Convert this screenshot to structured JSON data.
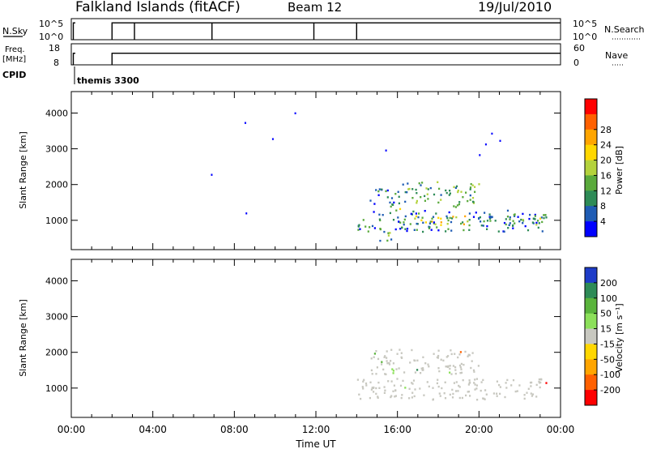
{
  "header": {
    "title": "Falkland Islands (fitACF)",
    "beam": "Beam 12",
    "date": "19/Jul/2010"
  },
  "status_panels": {
    "nsky": {
      "label": "N.Sky",
      "right_label": "N.Search",
      "left_ticks": [
        "10^5",
        "10^0"
      ],
      "right_ticks": [
        "10^5",
        "10^0"
      ]
    },
    "freq": {
      "label_line1": "Freq.",
      "label_line2": "[MHz]",
      "right_label": "Nave",
      "left_ticks": [
        "18",
        "8"
      ],
      "right_ticks": [
        "60",
        "0"
      ]
    },
    "cpid": {
      "label": "CPID",
      "mode": "themis 3300"
    }
  },
  "chart_data": [
    {
      "type": "heatmap",
      "title": "",
      "xlabel": "",
      "ylabel": "Slant Range [km]",
      "xlim": [
        0,
        24
      ],
      "ylim": [
        180,
        4600
      ],
      "yticks": [
        1000,
        2000,
        3000,
        4000
      ],
      "colorbar": {
        "label": "Power [dB]",
        "ticks": [
          "4",
          "8",
          "12",
          "16",
          "20",
          "24",
          "28"
        ],
        "colors": [
          "#0000ff",
          "#1f5cb4",
          "#2e8b57",
          "#5aaa3c",
          "#b4d23c",
          "#ffd700",
          "#ffa500",
          "#ff6000",
          "#ff0000"
        ]
      },
      "points": [
        {
          "t": 6.85,
          "r": 2300,
          "v": 4
        },
        {
          "t": 8.5,
          "r": 3750,
          "v": 4
        },
        {
          "t": 8.55,
          "r": 1220,
          "v": 4
        },
        {
          "t": 9.85,
          "r": 3300,
          "v": 4
        },
        {
          "t": 10.95,
          "r": 4020,
          "v": 4
        },
        {
          "t": 15.4,
          "r": 2980,
          "v": 4
        },
        {
          "t": 20.6,
          "r": 3450,
          "v": 4
        },
        {
          "t": 20.3,
          "r": 3150,
          "v": 4
        },
        {
          "t": 20.0,
          "r": 2850,
          "v": 8
        },
        {
          "t": 21.0,
          "r": 3250,
          "v": 4
        }
      ],
      "blobs": [
        {
          "t0": 14.0,
          "t1": 23.3,
          "r0": 700,
          "r1": 1300,
          "v": 12
        },
        {
          "t0": 16.8,
          "t1": 19.5,
          "r0": 850,
          "r1": 1150,
          "v": 24
        },
        {
          "t0": 21.6,
          "t1": 23.0,
          "r0": 900,
          "r1": 1200,
          "v": 20
        },
        {
          "t0": 14.6,
          "t1": 16.0,
          "r0": 1400,
          "r1": 1950,
          "v": 12
        },
        {
          "t0": 16.0,
          "t1": 20.0,
          "r0": 1500,
          "r1": 2100,
          "v": 16
        },
        {
          "t0": 18.5,
          "t1": 19.2,
          "r0": 1250,
          "r1": 1500,
          "v": 24
        },
        {
          "t0": 15.0,
          "t1": 15.9,
          "r0": 450,
          "r1": 750,
          "v": 16
        },
        {
          "t0": 15.9,
          "t1": 16.3,
          "r0": 1300,
          "r1": 1500,
          "v": 24
        }
      ]
    },
    {
      "type": "heatmap",
      "title": "",
      "xlabel": "Time UT",
      "ylabel": "Slant Range [km]",
      "xlim": [
        0,
        24
      ],
      "ylim": [
        180,
        4600
      ],
      "yticks": [
        1000,
        2000,
        3000,
        4000
      ],
      "xticks": [
        "00:00",
        "04:00",
        "08:00",
        "12:00",
        "16:00",
        "20:00",
        "00:00"
      ],
      "colorbar": {
        "label": "Velocity [m s⁻¹]",
        "ticks": [
          "200",
          "100",
          "50",
          "15",
          "-15",
          "-50",
          "-100",
          "-200"
        ],
        "colors": [
          "#1e3cc8",
          "#2e8b57",
          "#5ab43c",
          "#8ce05a",
          "#c8c8c0",
          "#ffd700",
          "#ffa500",
          "#ff6000",
          "#ff0000"
        ]
      },
      "blobs": [
        {
          "t0": 14.0,
          "t1": 23.3,
          "r0": 700,
          "r1": 1300,
          "v": 0
        },
        {
          "t0": 14.6,
          "t1": 20.0,
          "r0": 1400,
          "r1": 2100,
          "v": 0
        },
        {
          "t0": 15.6,
          "t1": 16.2,
          "r0": 1400,
          "r1": 1600,
          "v": 60
        }
      ]
    }
  ]
}
